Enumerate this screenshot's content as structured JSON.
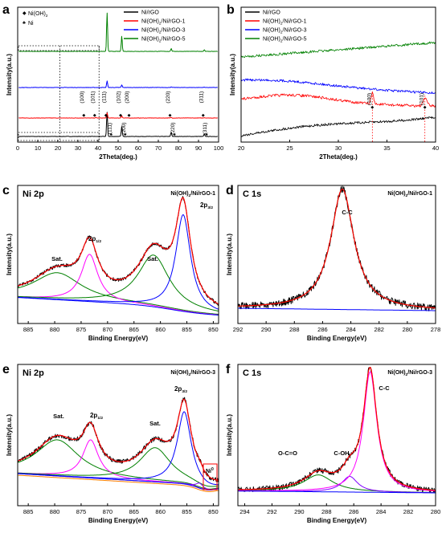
{
  "chart_data": [
    {
      "panel": "a",
      "type": "line",
      "xlabel": "2Theta(deg.)",
      "ylabel": "Intensity(a.u.)",
      "xlim": [
        0,
        100
      ],
      "xticks": [
        "0",
        "10",
        "20",
        "30",
        "40",
        "50",
        "60",
        "70",
        "80",
        "90",
        "100"
      ],
      "marker_legend": [
        "Ni(OH)2",
        "Ni"
      ],
      "series": [
        {
          "name": "Ni/rGO",
          "color": "#000000",
          "peaks": [
            [
              44.5,
              1.0
            ],
            [
              51.8,
              0.42
            ],
            [
              76.4,
              0.18
            ],
            [
              92.9,
              0.1
            ]
          ]
        },
        {
          "name": "Ni(OH)2/Ni/rGO-1",
          "color": "#ff0000",
          "peaks": [
            [
              33.5,
              0.03
            ],
            [
              38.9,
              0.04
            ],
            [
              44.5,
              0.45
            ],
            [
              51.8,
              0.2
            ],
            [
              76.4,
              0.06
            ],
            [
              92.9,
              0.04
            ]
          ]
        },
        {
          "name": "Ni(OH)2/Ni/rGO-3",
          "color": "#0000ff",
          "peaks": [
            [
              44.5,
              0.5
            ],
            [
              51.8,
              0.2
            ],
            [
              76.4,
              0.05
            ],
            [
              92.9,
              0.03
            ]
          ]
        },
        {
          "name": "Ni(OH)2/Ni/rGO-5",
          "color": "#008000",
          "peaks": [
            [
              44.5,
              0.95
            ],
            [
              51.8,
              0.38
            ],
            [
              76.4,
              0.07
            ],
            [
              92.9,
              0.04
            ]
          ]
        }
      ],
      "annotations_niooh2": [
        "(100)",
        "(101)",
        "(111)",
        "(102)",
        "(200)",
        "(220)",
        "(311)"
      ],
      "annotations_ni": [
        "(111)",
        "(200)",
        "(220)",
        "(311)"
      ]
    },
    {
      "panel": "b",
      "type": "line",
      "xlabel": "2Theta(deg.)",
      "ylabel": "Intensity(a.u.)",
      "xlim": [
        20,
        40
      ],
      "xticks": [
        "20",
        "25",
        "30",
        "35",
        "40"
      ],
      "series": [
        {
          "name": "Ni/rGO",
          "color": "#000000"
        },
        {
          "name": "Ni(OH)2/Ni/rGO-1",
          "color": "#ff0000"
        },
        {
          "name": "Ni(OH)2/Ni/rGO-3",
          "color": "#0000ff"
        },
        {
          "name": "Ni(OH)2/Ni/rGO-5",
          "color": "#008000"
        }
      ],
      "annotations": [
        {
          "label": "(100)",
          "x": 33.5
        },
        {
          "label": "(101)",
          "x": 38.9
        }
      ]
    },
    {
      "panel": "c",
      "type": "line",
      "title": "Ni 2p",
      "sample": "Ni(OH)2/Ni/rGO-1",
      "xlabel": "Binding Energy(eV)",
      "ylabel": "Intensity(a.u.)",
      "xlim": [
        887,
        849
      ],
      "xticks": [
        "885",
        "880",
        "875",
        "870",
        "865",
        "860",
        "855",
        "850"
      ],
      "peak_labels": [
        "Sat.",
        "2p1/2",
        "Sat.",
        "2p3/2"
      ],
      "components": [
        {
          "center": 879.5,
          "height": 0.24,
          "width": 5.5,
          "color": "#008000"
        },
        {
          "center": 873.4,
          "height": 0.42,
          "width": 1.9,
          "color": "#ff00ff"
        },
        {
          "center": 861.3,
          "height": 0.46,
          "width": 3.6,
          "color": "#008000"
        },
        {
          "center": 855.7,
          "height": 0.86,
          "width": 1.7,
          "color": "#0000ff"
        }
      ]
    },
    {
      "panel": "d",
      "type": "line",
      "title": "C 1s",
      "sample": "Ni(OH)2/Ni/rGO-1",
      "xlabel": "Binding Energy(eV)",
      "ylabel": "Intensity(a.u.)",
      "xlim": [
        292,
        278
      ],
      "xticks": [
        "292",
        "290",
        "288",
        "286",
        "284",
        "282",
        "280",
        "278"
      ],
      "peak_labels": [
        "C-C"
      ],
      "components": [
        {
          "center": 284.6,
          "height": 1.0,
          "width": 1.0,
          "color": "#008000"
        }
      ]
    },
    {
      "panel": "e",
      "type": "line",
      "title": "Ni 2p",
      "sample": "Ni(OH)2/Ni/rGO-3",
      "xlabel": "Binding Energy(eV)",
      "ylabel": "Intensity(a.u.)",
      "xlim": [
        887,
        849
      ],
      "xticks": [
        "885",
        "880",
        "875",
        "870",
        "865",
        "860",
        "855",
        "850"
      ],
      "peak_labels": [
        "Sat.",
        "2p1/2",
        "Sat.",
        "2p3/2",
        "Ni0"
      ],
      "components": [
        {
          "center": 879.5,
          "height": 0.36,
          "width": 5.0,
          "color": "#008000"
        },
        {
          "center": 873.2,
          "height": 0.38,
          "width": 1.8,
          "color": "#ff00ff"
        },
        {
          "center": 861.0,
          "height": 0.34,
          "width": 3.6,
          "color": "#008000"
        },
        {
          "center": 855.5,
          "height": 0.72,
          "width": 1.6,
          "color": "#0000ff"
        },
        {
          "center": 852.6,
          "height": 0.05,
          "width": 0.8,
          "color": "#8000ff"
        }
      ]
    },
    {
      "panel": "f",
      "type": "line",
      "title": "C 1s",
      "sample": "Ni(OH)2/Ni/rGO-3",
      "xlabel": "Binding Energy(eV)",
      "ylabel": "Intensity(a.u.)",
      "xlim": [
        294.5,
        280
      ],
      "xticks": [
        "294",
        "292",
        "290",
        "288",
        "286",
        "284",
        "282",
        "280"
      ],
      "peak_labels": [
        "O-C=O",
        "C-OH",
        "C-C"
      ],
      "components": [
        {
          "center": 288.6,
          "height": 0.14,
          "width": 1.3,
          "color": "#008000"
        },
        {
          "center": 286.3,
          "height": 0.13,
          "width": 0.7,
          "color": "#8000ff"
        },
        {
          "center": 284.8,
          "height": 1.0,
          "width": 0.6,
          "color": "#ff00ff"
        }
      ]
    }
  ],
  "legend_a": {
    "left": [
      "Ni(OH)2",
      "Ni"
    ],
    "right": [
      "Ni/rGO",
      "Ni(OH)2/Ni/rGO-1",
      "Ni(OH)2/Ni/rGO-3",
      "Ni(OH)2/Ni/rGO-5"
    ]
  },
  "panel_letters": [
    "a",
    "b",
    "c",
    "d",
    "e",
    "f"
  ]
}
